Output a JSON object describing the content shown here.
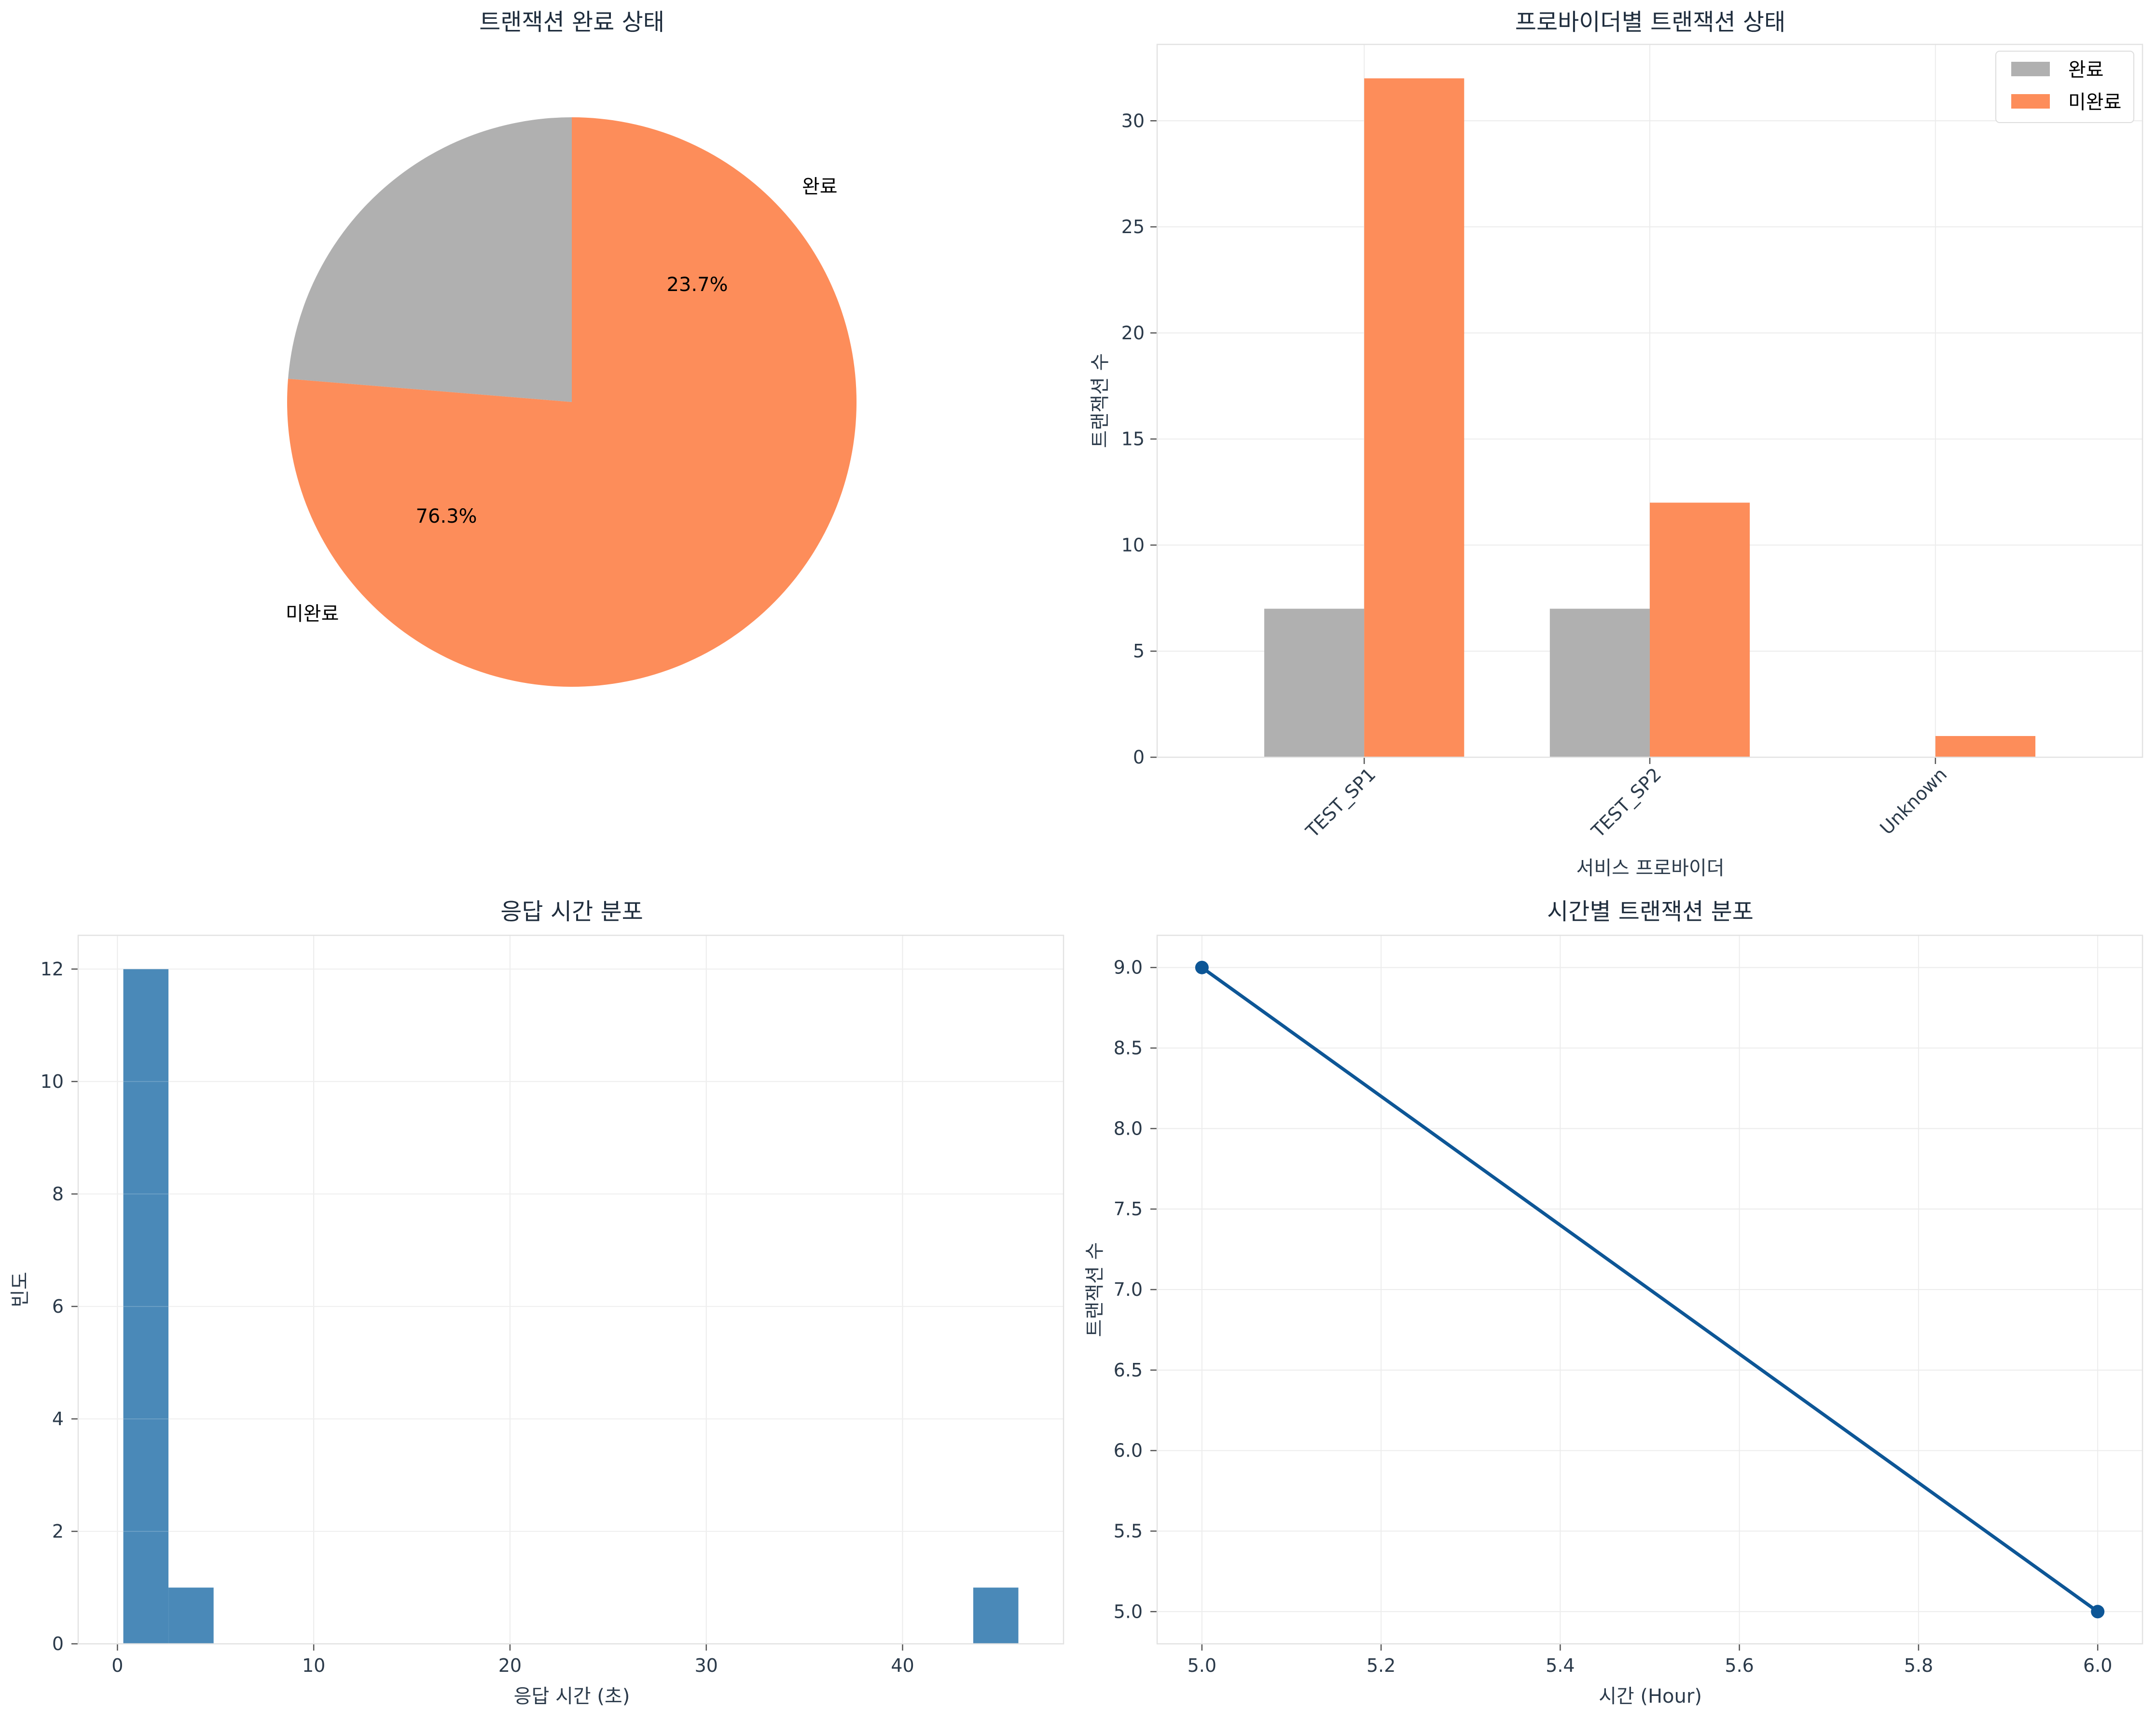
{
  "colors": {
    "complete": "#b0b0b0",
    "incomplete": "#fd8d5a",
    "hist": "#4a89b8",
    "line": "#0d5696"
  },
  "chart_data": [
    {
      "type": "pie",
      "title": "트랜잭션 완료 상태",
      "labels": [
        "완료",
        "미완료"
      ],
      "values": [
        23.7,
        76.3
      ],
      "pct_labels": [
        "23.7%",
        "76.3%"
      ],
      "colors": [
        "#b0b0b0",
        "#fd8d5a"
      ],
      "start_angle": 90
    },
    {
      "type": "bar",
      "title": "프로바이더별 트랜잭션 상태",
      "xlabel": "서비스 프로바이더",
      "ylabel": "트랜잭션 수",
      "categories": [
        "TEST_SP1",
        "TEST_SP2",
        "Unknown"
      ],
      "series": [
        {
          "name": "완료",
          "values": [
            7,
            7,
            0
          ],
          "color": "#b0b0b0"
        },
        {
          "name": "미완료",
          "values": [
            32,
            12,
            1
          ],
          "color": "#fd8d5a"
        }
      ],
      "ylim": [
        0,
        33.6
      ],
      "yticks": [
        0,
        5,
        10,
        15,
        20,
        25,
        30
      ],
      "legend": "top-right",
      "grid": true
    },
    {
      "type": "histogram",
      "title": "응답 시간 분포",
      "xlabel": "응답 시간 (초)",
      "ylabel": "빈도",
      "bins": [
        {
          "x0": 0.3,
          "x1": 2.6,
          "count": 12
        },
        {
          "x0": 2.6,
          "x1": 4.9,
          "count": 1
        },
        {
          "x0": 43.6,
          "x1": 45.9,
          "count": 1
        }
      ],
      "xlim": [
        -2.0,
        48.2
      ],
      "ylim": [
        0,
        12.6
      ],
      "xticks": [
        0,
        10,
        20,
        30,
        40
      ],
      "yticks": [
        0,
        2,
        4,
        6,
        8,
        10,
        12
      ],
      "grid": true
    },
    {
      "type": "line",
      "title": "시간별 트랜잭션 분포",
      "xlabel": "시간 (Hour)",
      "ylabel": "트랜잭션 수",
      "x": [
        5,
        6
      ],
      "y": [
        9,
        5
      ],
      "xlim": [
        4.95,
        6.05
      ],
      "ylim": [
        4.8,
        9.2
      ],
      "xticks": [
        "5.0",
        "5.2",
        "5.4",
        "5.6",
        "5.8",
        "6.0"
      ],
      "yticks": [
        "5.0",
        "5.5",
        "6.0",
        "6.5",
        "7.0",
        "7.5",
        "8.0",
        "8.5",
        "9.0"
      ],
      "grid": true
    }
  ]
}
